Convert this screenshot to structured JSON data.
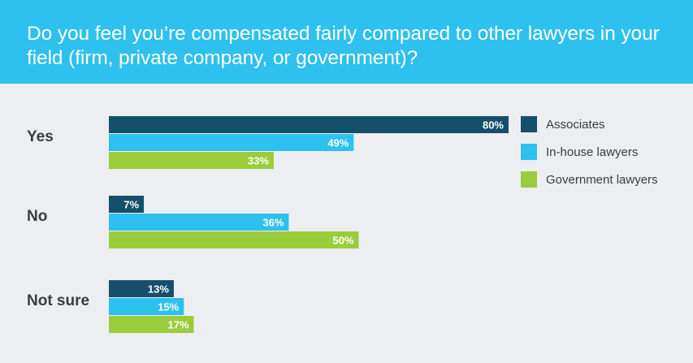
{
  "header": {
    "title": "Do you feel you’re compensated fairly compared to other lawyers in your field (firm, private company, or government)?"
  },
  "colors": {
    "header_bg": "#2ec0ee",
    "background": "#eceef1",
    "associates": "#145069",
    "inhouse": "#2ec0ee",
    "government": "#9bcc3b"
  },
  "chart_data": {
    "type": "bar",
    "orientation": "horizontal",
    "title": "Do you feel you’re compensated fairly compared to other lawyers in your field (firm, private company, or government)?",
    "categories": [
      "Yes",
      "No",
      "Not sure"
    ],
    "series": [
      {
        "name": "Associates",
        "values": [
          80,
          7,
          13
        ],
        "labels": [
          "80%",
          "7%",
          "13%"
        ],
        "color": "#145069"
      },
      {
        "name": "In-house lawyers",
        "values": [
          49,
          36,
          15
        ],
        "labels": [
          "49%",
          "36%",
          "15%"
        ],
        "color": "#2ec0ee"
      },
      {
        "name": "Government lawyers",
        "values": [
          33,
          50,
          17
        ],
        "labels": [
          "33%",
          "50%",
          "17%"
        ],
        "color": "#9bcc3b"
      }
    ],
    "xlim": [
      0,
      80
    ],
    "grid": false,
    "legend_position": "top-right",
    "data_labels": true
  }
}
